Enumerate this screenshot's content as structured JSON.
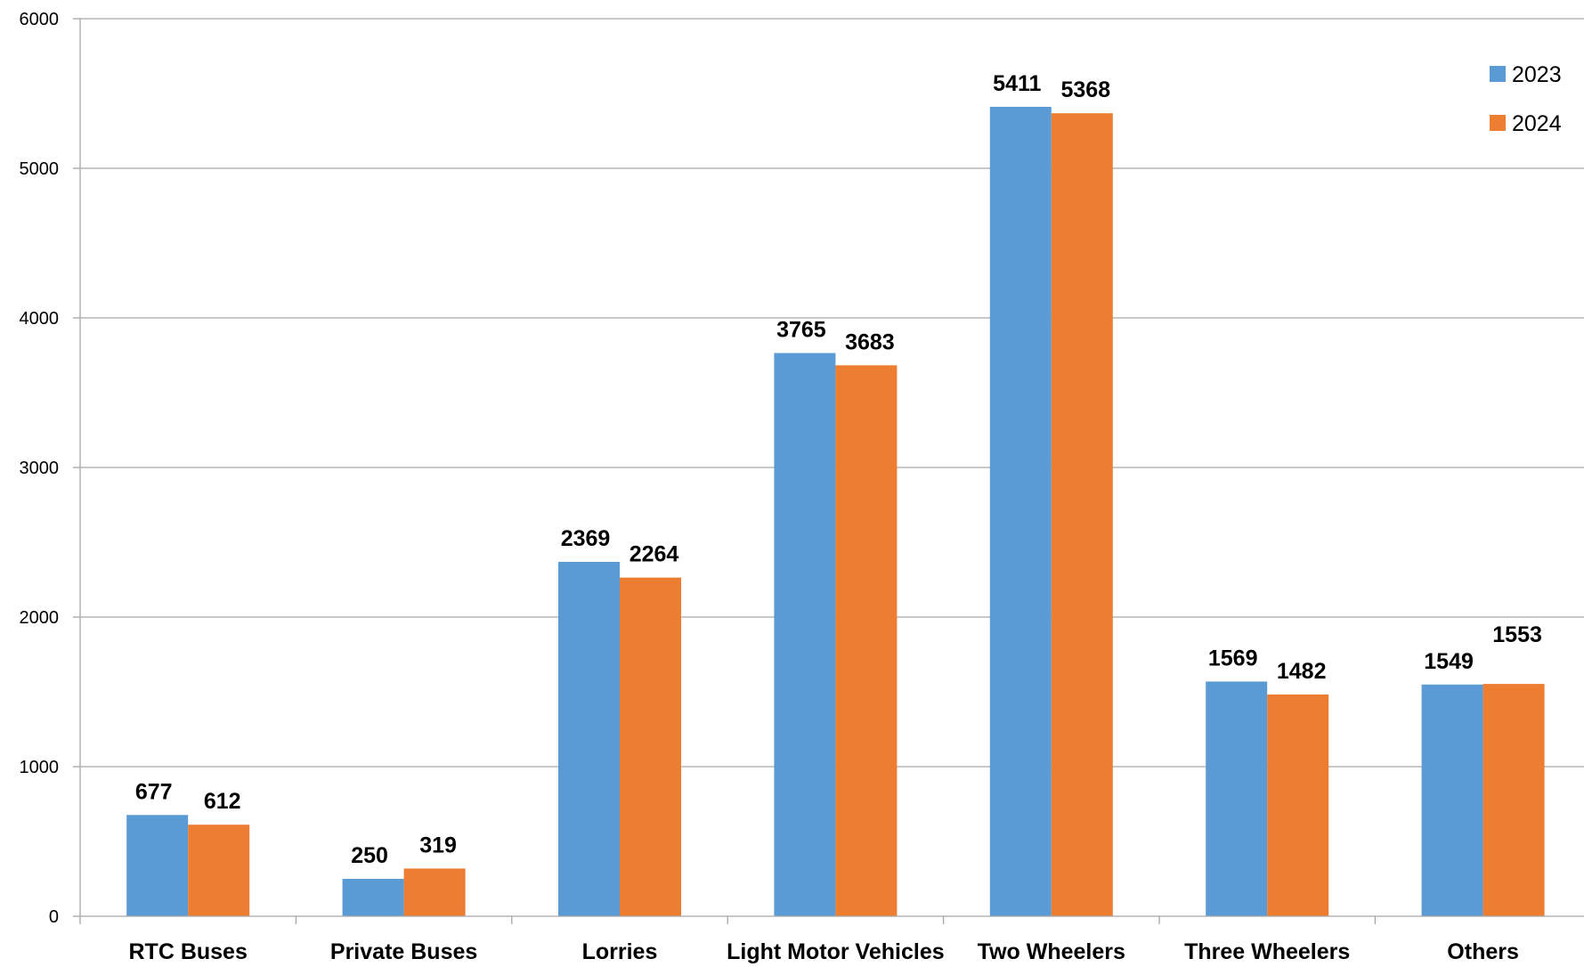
{
  "chart_data": {
    "type": "bar",
    "title": "",
    "xlabel": "",
    "ylabel": "",
    "categories": [
      "RTC Buses",
      "Private Buses",
      "Lorries",
      "Light Motor Vehicles",
      "Two Wheelers",
      "Three Wheelers",
      "Others"
    ],
    "series": [
      {
        "name": "2023",
        "color": "#5b9bd5",
        "values": [
          677,
          250,
          2369,
          3765,
          5411,
          1569,
          1549
        ]
      },
      {
        "name": "2024",
        "color": "#ed7d31",
        "values": [
          612,
          319,
          2264,
          3683,
          5368,
          1482,
          1553
        ]
      }
    ],
    "ylim": [
      0,
      6000
    ],
    "yticks": [
      0,
      1000,
      2000,
      3000,
      4000,
      5000,
      6000
    ],
    "grid": true,
    "legend_position": "top-right",
    "data_labels": true
  }
}
